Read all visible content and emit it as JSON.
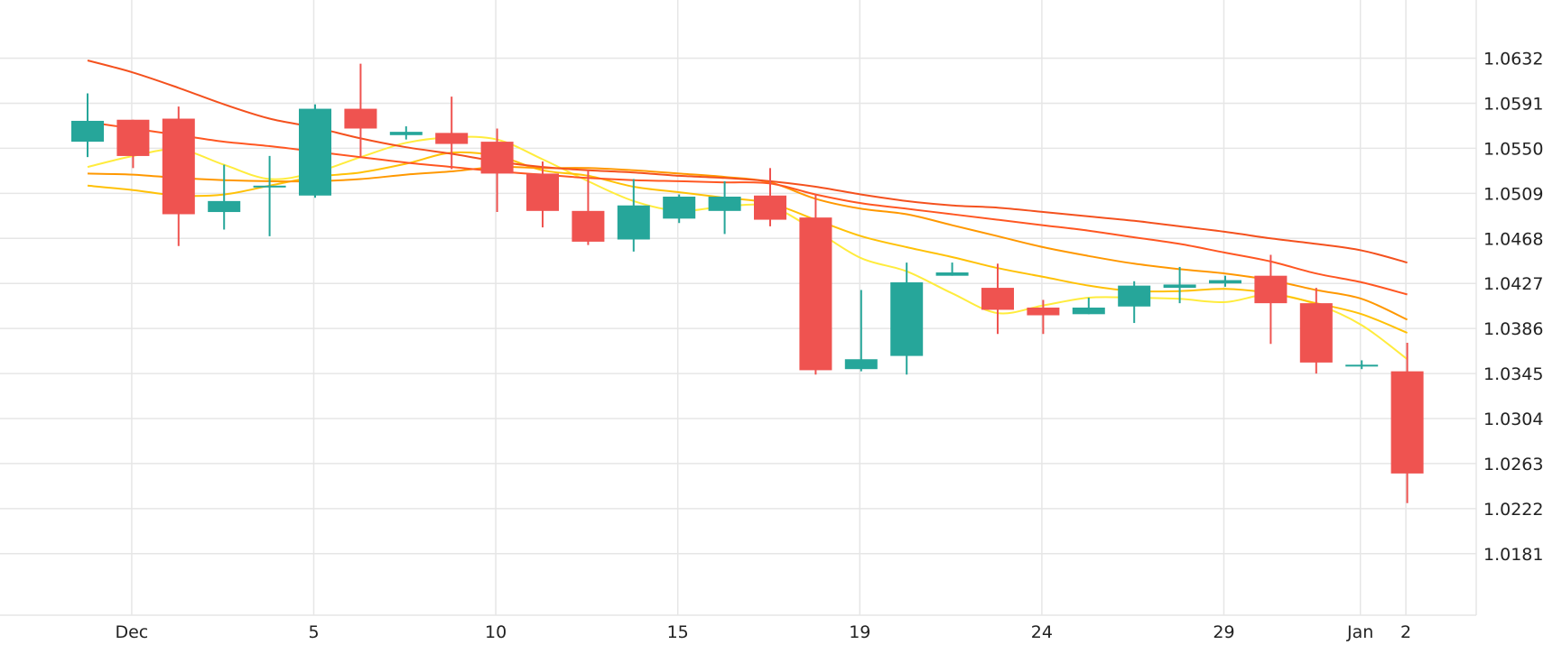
{
  "chart_data": {
    "type": "candlestick",
    "title": "",
    "xlabel": "",
    "ylabel": "",
    "ylim": [
      1.0125,
      1.0685
    ],
    "grid": true,
    "y_ticks": [
      "1.0632",
      "1.0591",
      "1.0550",
      "1.0509",
      "1.0468",
      "1.0427",
      "1.0386",
      "1.0345",
      "1.0304",
      "1.0263",
      "1.0222",
      "1.0181"
    ],
    "x_ticks": [
      {
        "label": "Dec",
        "index": 0.97
      },
      {
        "label": "5",
        "index": 4.97
      },
      {
        "label": "10",
        "index": 8.97
      },
      {
        "label": "15",
        "index": 12.97
      },
      {
        "label": "19",
        "index": 16.97
      },
      {
        "label": "24",
        "index": 20.97
      },
      {
        "label": "29",
        "index": 24.97
      },
      {
        "label": "Jan",
        "index": 27.97
      },
      {
        "label": "2",
        "index": 28.97
      }
    ],
    "candles": [
      {
        "open": 1.0556,
        "high": 1.06,
        "low": 1.0542,
        "close": 1.0575
      },
      {
        "open": 1.0576,
        "high": 1.0576,
        "low": 1.0532,
        "close": 1.0543
      },
      {
        "open": 1.0577,
        "high": 1.0588,
        "low": 1.0461,
        "close": 1.049
      },
      {
        "open": 1.0492,
        "high": 1.0535,
        "low": 1.0476,
        "close": 1.0502
      },
      {
        "open": 1.0516,
        "high": 1.0543,
        "low": 1.047,
        "close": 1.0516
      },
      {
        "open": 1.0507,
        "high": 1.059,
        "low": 1.0505,
        "close": 1.0586
      },
      {
        "open": 1.0586,
        "high": 1.0627,
        "low": 1.0542,
        "close": 1.0568
      },
      {
        "open": 1.0562,
        "high": 1.057,
        "low": 1.0558,
        "close": 1.0565
      },
      {
        "open": 1.0564,
        "high": 1.0597,
        "low": 1.0531,
        "close": 1.0554
      },
      {
        "open": 1.0556,
        "high": 1.0568,
        "low": 1.0492,
        "close": 1.0527
      },
      {
        "open": 1.0527,
        "high": 1.0538,
        "low": 1.0478,
        "close": 1.0493
      },
      {
        "open": 1.0493,
        "high": 1.053,
        "low": 1.0462,
        "close": 1.0465
      },
      {
        "open": 1.0467,
        "high": 1.0522,
        "low": 1.0456,
        "close": 1.0498
      },
      {
        "open": 1.0486,
        "high": 1.0508,
        "low": 1.0482,
        "close": 1.0506
      },
      {
        "open": 1.0493,
        "high": 1.052,
        "low": 1.0472,
        "close": 1.0506
      },
      {
        "open": 1.0507,
        "high": 1.0532,
        "low": 1.0479,
        "close": 1.0485
      },
      {
        "open": 1.0487,
        "high": 1.0508,
        "low": 1.0344,
        "close": 1.0348
      },
      {
        "open": 1.0349,
        "high": 1.0421,
        "low": 1.0347,
        "close": 1.0358
      },
      {
        "open": 1.0361,
        "high": 1.0446,
        "low": 1.0344,
        "close": 1.0428
      },
      {
        "open": 1.0434,
        "high": 1.0446,
        "low": 1.0434,
        "close": 1.0437
      },
      {
        "open": 1.0423,
        "high": 1.0445,
        "low": 1.0381,
        "close": 1.0403
      },
      {
        "open": 1.0405,
        "high": 1.0412,
        "low": 1.0381,
        "close": 1.0398
      },
      {
        "open": 1.0399,
        "high": 1.0414,
        "low": 1.0399,
        "close": 1.0405
      },
      {
        "open": 1.0406,
        "high": 1.0429,
        "low": 1.0391,
        "close": 1.0425
      },
      {
        "open": 1.0423,
        "high": 1.0442,
        "low": 1.0409,
        "close": 1.0426
      },
      {
        "open": 1.0427,
        "high": 1.0434,
        "low": 1.0424,
        "close": 1.043
      },
      {
        "open": 1.0434,
        "high": 1.0453,
        "low": 1.0372,
        "close": 1.0409
      },
      {
        "open": 1.0409,
        "high": 1.0423,
        "low": 1.0345,
        "close": 1.0355
      },
      {
        "open": 1.0352,
        "high": 1.0357,
        "low": 1.0349,
        "close": 1.0353
      },
      {
        "open": 1.0347,
        "high": 1.0373,
        "low": 1.0227,
        "close": 1.0254
      }
    ],
    "moving_averages": [
      {
        "color": "#ffec3d",
        "start_index": 0,
        "values": [
          1.0533,
          1.0543,
          1.0549,
          1.0535,
          1.0522,
          1.0528,
          1.0542,
          1.0555,
          1.056,
          1.0558,
          1.054,
          1.052,
          1.0502,
          1.0493,
          1.0497,
          1.0497,
          1.0475,
          1.045,
          1.0438,
          1.0418,
          1.04,
          1.0407,
          1.0414,
          1.0414,
          1.0413,
          1.041,
          1.0417,
          1.0408,
          1.0389,
          1.0358
        ]
      },
      {
        "color": "#ffc107",
        "start_index": 0,
        "values": [
          1.0516,
          1.0512,
          1.0507,
          1.0508,
          1.0516,
          1.0524,
          1.0528,
          1.0536,
          1.0546,
          1.0543,
          1.053,
          1.0525,
          1.0515,
          1.051,
          1.0505,
          1.05,
          1.0485,
          1.047,
          1.046,
          1.0451,
          1.0441,
          1.0433,
          1.0425,
          1.042,
          1.042,
          1.0422,
          1.0418,
          1.0409,
          1.0399,
          1.0382
        ]
      },
      {
        "color": "#ff9800",
        "start_index": 0,
        "values": [
          1.0527,
          1.0526,
          1.0523,
          1.0521,
          1.052,
          1.052,
          1.0522,
          1.0526,
          1.0529,
          1.0533,
          1.0532,
          1.0532,
          1.053,
          1.0527,
          1.0524,
          1.0519,
          1.0504,
          1.0495,
          1.049,
          1.048,
          1.047,
          1.046,
          1.0452,
          1.0445,
          1.044,
          1.0436,
          1.043,
          1.0421,
          1.0413,
          1.0394
        ]
      },
      {
        "color": "#ff5722",
        "start_index": 0,
        "values": [
          1.0574,
          1.0568,
          1.0562,
          1.0556,
          1.0552,
          1.0547,
          1.0542,
          1.0537,
          1.0533,
          1.0529,
          1.0526,
          1.0523,
          1.0521,
          1.052,
          1.0519,
          1.0518,
          1.0508,
          1.05,
          1.0495,
          1.049,
          1.0485,
          1.048,
          1.0475,
          1.0469,
          1.0463,
          1.0455,
          1.0447,
          1.0436,
          1.0428,
          1.0417
        ]
      },
      {
        "color": "#f4511e",
        "start_index": 0,
        "values": [
          1.063,
          1.0619,
          1.0605,
          1.059,
          1.0577,
          1.0569,
          1.0559,
          1.0551,
          1.0545,
          1.0538,
          1.0533,
          1.053,
          1.0528,
          1.0525,
          1.0523,
          1.052,
          1.0515,
          1.0508,
          1.0502,
          1.0498,
          1.0496,
          1.0492,
          1.0488,
          1.0484,
          1.0479,
          1.0474,
          1.0468,
          1.0463,
          1.0457,
          1.0446
        ]
      }
    ],
    "colors": {
      "up": "#26a69a",
      "down": "#ef5350",
      "grid": "#e6e6e6",
      "axis_text": "#222222",
      "background": "#ffffff"
    }
  }
}
